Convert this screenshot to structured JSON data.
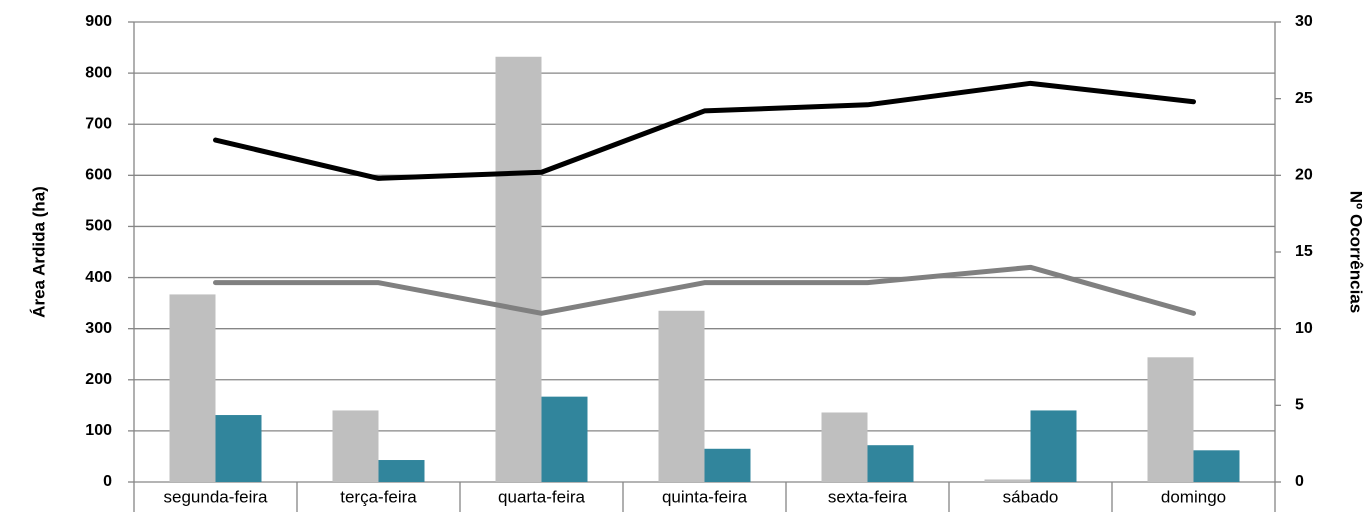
{
  "chart_data": {
    "type": "bar_line",
    "y_label": "Área Ardida (ha)",
    "y2_label": "Nº Ocorrências",
    "categories": [
      "segunda-feira",
      "terça-feira",
      "quarta-feira",
      "quinta-feira",
      "sexta-feira",
      "sábado",
      "domingo"
    ],
    "series": [
      {
        "type": "bar",
        "color": "#bfbfbf",
        "values": [
          367,
          140,
          832,
          335,
          136,
          5,
          244
        ]
      },
      {
        "type": "bar",
        "color": "#31859c",
        "values": [
          131,
          43,
          167,
          65,
          72,
          140,
          62
        ]
      },
      {
        "type": "line",
        "axis": "y2",
        "color": "#000000",
        "values": [
          22.3,
          19.8,
          20.2,
          24.2,
          24.6,
          26.0,
          24.8
        ]
      },
      {
        "type": "line",
        "axis": "y2",
        "color": "#808080",
        "values": [
          13.0,
          13.0,
          11.0,
          13.0,
          13.0,
          14.0,
          11.0
        ]
      }
    ],
    "ylim": [
      0,
      900
    ],
    "yticks": [
      0,
      100,
      200,
      300,
      400,
      500,
      600,
      700,
      800,
      900
    ],
    "y2lim": [
      0,
      30
    ],
    "y2ticks": [
      0,
      5,
      10,
      15,
      20,
      25,
      30
    ],
    "grid": true
  }
}
